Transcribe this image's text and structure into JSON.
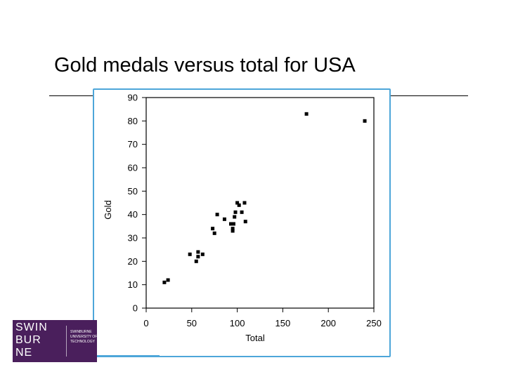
{
  "slide": {
    "title": "Gold medals versus total for USA"
  },
  "logo": {
    "word_lines": [
      "SWIN",
      "BUR",
      "NE"
    ],
    "sub_lines": [
      "SWINBURNE",
      "UNIVERSITY OF",
      "TECHNOLOGY"
    ],
    "bg_color": "#4a1f5c"
  },
  "colors": {
    "frame": "#4da6d9",
    "points": "#000000"
  },
  "chart_data": {
    "type": "scatter",
    "title": "",
    "xlabel": "Total",
    "ylabel": "Gold",
    "xlim": [
      0,
      250
    ],
    "ylim": [
      0,
      90
    ],
    "xticks": [
      0,
      50,
      100,
      150,
      200,
      250
    ],
    "yticks": [
      0,
      10,
      20,
      30,
      40,
      50,
      60,
      70,
      80,
      90
    ],
    "grid": false,
    "series": [
      {
        "points": [
          [
            20,
            11
          ],
          [
            24,
            12
          ],
          [
            48,
            23
          ],
          [
            55,
            20
          ],
          [
            57,
            22
          ],
          [
            57,
            24
          ],
          [
            62,
            23
          ],
          [
            73,
            34
          ],
          [
            75,
            32
          ],
          [
            78,
            40
          ],
          [
            86,
            38
          ],
          [
            93,
            36
          ],
          [
            95,
            34
          ],
          [
            95,
            33
          ],
          [
            96,
            36
          ],
          [
            97,
            39
          ],
          [
            98,
            41
          ],
          [
            100,
            45
          ],
          [
            102,
            44
          ],
          [
            105,
            41
          ],
          [
            108,
            45
          ],
          [
            109,
            37
          ],
          [
            176,
            83
          ],
          [
            240,
            80
          ]
        ]
      }
    ]
  }
}
